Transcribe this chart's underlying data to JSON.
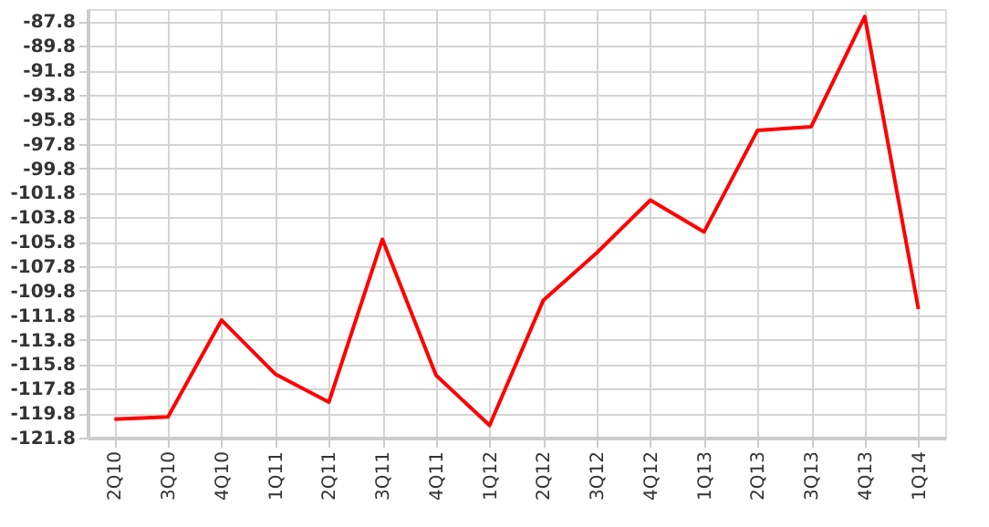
{
  "chart_data": {
    "type": "line",
    "categories": [
      "2Q10",
      "3Q10",
      "4Q10",
      "1Q11",
      "2Q11",
      "3Q11",
      "4Q11",
      "1Q12",
      "2Q12",
      "3Q12",
      "4Q12",
      "1Q13",
      "2Q13",
      "3Q13",
      "4Q13",
      "1Q14"
    ],
    "series": [
      {
        "color": "#ff0000",
        "values": [
          -120.3,
          -120.1,
          -112.2,
          -116.6,
          -118.9,
          -105.6,
          -116.7,
          -120.8,
          -110.6,
          -106.7,
          -102.4,
          -105.0,
          -96.7,
          -96.4,
          -87.4,
          -111.3
        ]
      }
    ],
    "ylim": [
      -121.8,
      -86.8
    ],
    "yticks": [
      -87.8,
      -89.8,
      -91.8,
      -93.8,
      -95.8,
      -97.8,
      -99.8,
      -101.8,
      -103.8,
      -105.8,
      -107.8,
      -109.8,
      -111.8,
      -113.8,
      -115.8,
      -117.8,
      -119.8,
      -121.8
    ],
    "grid": true,
    "marker": "none",
    "line_style": "solid"
  }
}
